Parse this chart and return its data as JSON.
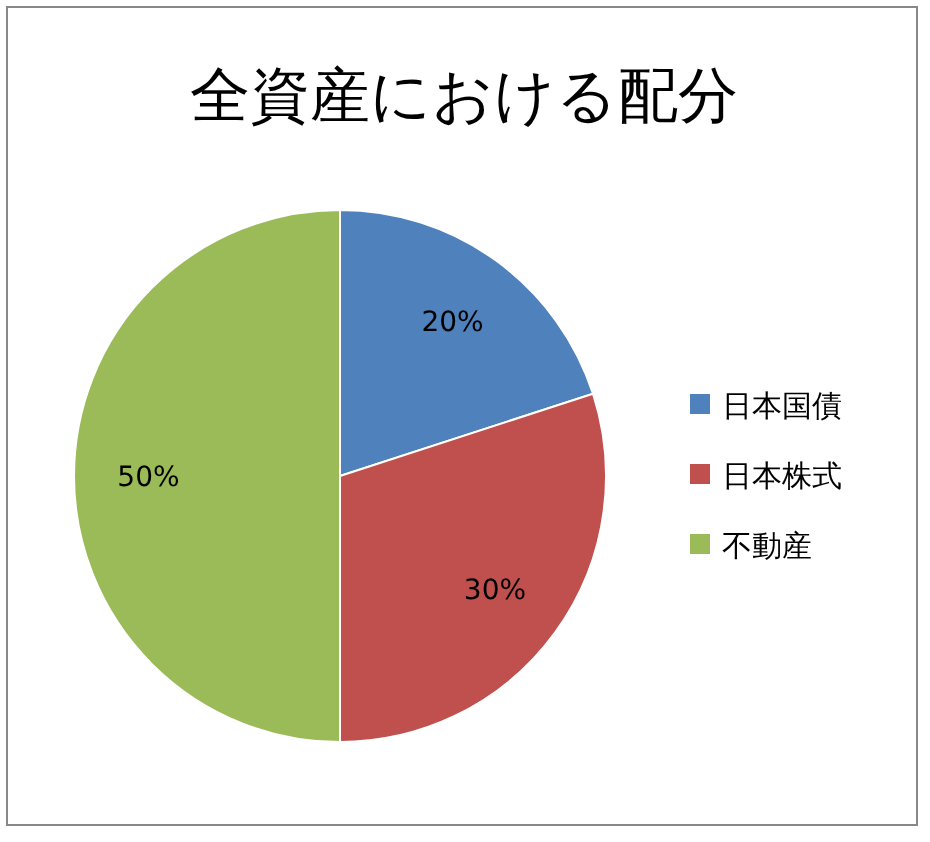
{
  "chart_data": {
    "type": "pie",
    "title": "全資産における配分",
    "categories": [
      "日本国債",
      "日本株式",
      "不動産"
    ],
    "values": [
      20,
      30,
      50
    ],
    "colors": [
      "#4f81bd",
      "#c0504d",
      "#9bbb59"
    ],
    "value_labels": [
      "20%",
      "30%",
      "50%"
    ],
    "legend": "right"
  }
}
